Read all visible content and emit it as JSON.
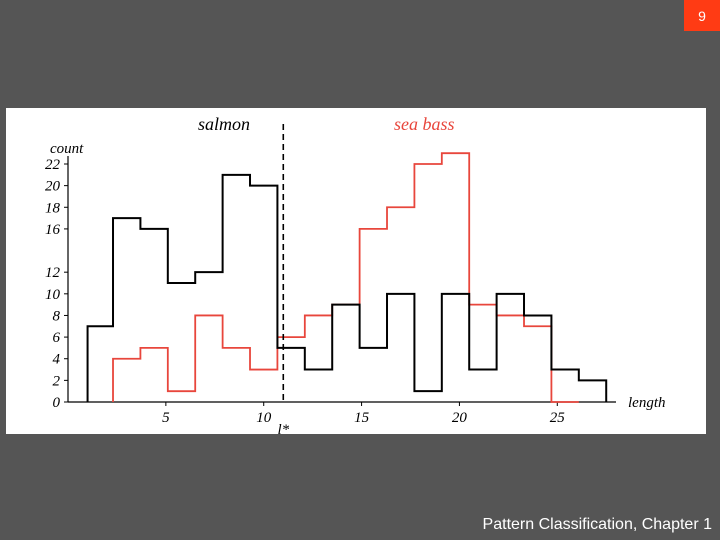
{
  "slide": {
    "number": "9",
    "footer": "Pattern Classification, Chapter 1"
  },
  "colors": {
    "salmon": "#000000",
    "sea_bass": "#e8463c",
    "slide_number_bg": "#ff3b14",
    "background": "#555555"
  },
  "chart_data": {
    "type": "histogram",
    "xlabel": "length",
    "ylabel": "count",
    "xlim": [
      0,
      28
    ],
    "ylim": [
      0,
      22
    ],
    "x_ticks": [
      5,
      10,
      15,
      20,
      25
    ],
    "y_ticks": [
      0,
      2,
      4,
      6,
      8,
      10,
      12,
      16,
      18,
      20,
      22
    ],
    "threshold": {
      "x": 11,
      "label": "l*"
    },
    "series": [
      {
        "name": "salmon",
        "color": "#000000",
        "edges": [
          1,
          2.3,
          3.7,
          5.1,
          6.5,
          7.9,
          9.3,
          10.7,
          12.1,
          13.5,
          14.9,
          16.3,
          17.7,
          19.1,
          20.5,
          21.9,
          23.3,
          24.7,
          26.1,
          27.5
        ],
        "values": [
          7,
          17,
          16,
          11,
          12,
          21,
          20,
          5,
          3,
          9,
          5,
          10,
          1,
          10,
          3,
          10,
          8,
          3,
          2
        ]
      },
      {
        "name": "sea bass",
        "color": "#e8463c",
        "edges": [
          2.3,
          3.7,
          5.1,
          6.5,
          7.9,
          9.3,
          10.7,
          12.1,
          13.5,
          14.9,
          16.3,
          17.7,
          19.1,
          20.5,
          21.9,
          23.3,
          24.7,
          26.1
        ],
        "values": [
          4,
          5,
          1,
          8,
          5,
          3,
          6,
          8,
          9,
          16,
          18,
          22,
          23,
          9,
          8,
          7,
          0
        ]
      }
    ]
  }
}
